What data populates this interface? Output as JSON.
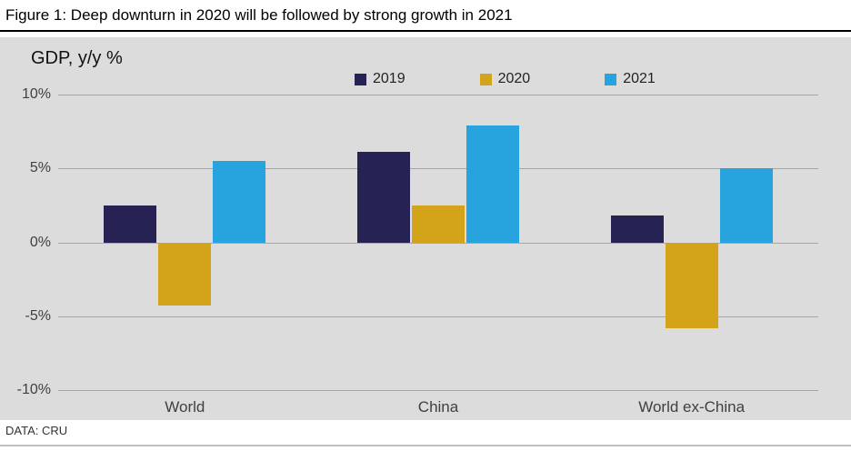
{
  "figure": {
    "title": "Figure 1: Deep downturn in 2020 will be followed by strong growth in 2021",
    "ylabel": "GDP, y/y %",
    "source": "DATA: CRU"
  },
  "chart_data": {
    "type": "bar",
    "title": "Figure 1: Deep downturn in 2020 will be followed by strong growth in 2021",
    "xlabel": "",
    "ylabel": "GDP, y/y %",
    "categories": [
      "World",
      "China",
      "World ex-China"
    ],
    "series": [
      {
        "name": "2019",
        "color": "#262254",
        "values": [
          2.5,
          6.1,
          1.8
        ]
      },
      {
        "name": "2020",
        "color": "#d3a419",
        "values": [
          -4.3,
          2.5,
          -5.8
        ]
      },
      {
        "name": "2021",
        "color": "#27a3dd",
        "values": [
          5.5,
          7.9,
          5.0
        ]
      }
    ],
    "ylim": [
      -10,
      10
    ],
    "yticks": [
      10,
      5,
      0,
      -5,
      -10
    ],
    "ytick_labels": [
      "10%",
      "5%",
      "0%",
      "-5%",
      "-10%"
    ],
    "grid": true,
    "legend_position": "top",
    "panel_background": "#dcdcdc",
    "gridline_color": "#a6a6a6"
  }
}
